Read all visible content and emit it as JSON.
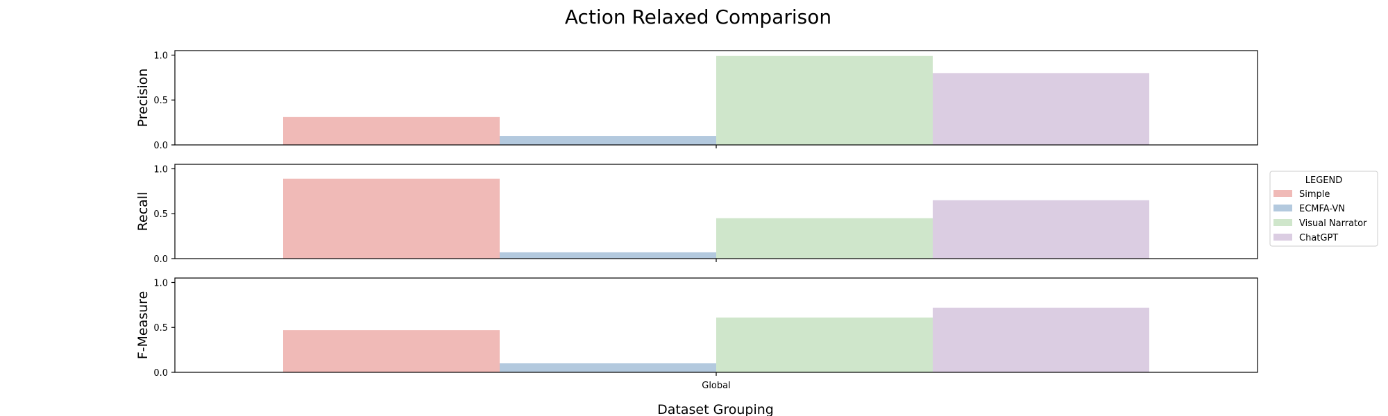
{
  "chart_data": {
    "type": "bar",
    "title": "Action Relaxed Comparison",
    "xlabel": "Dataset Grouping",
    "categories": [
      "Global"
    ],
    "legend": {
      "title": "LEGEND",
      "placement": "right-center",
      "entries": [
        "Simple",
        "ECMFA-VN",
        "Visual Narrator",
        "ChatGPT"
      ]
    },
    "colors": {
      "Simple": "#f0bab7",
      "ECMFA-VN": "#b3c9de",
      "Visual Narrator": "#cfe6cb",
      "ChatGPT": "#dbcde2"
    },
    "ylim": [
      0,
      1.05
    ],
    "yticks": [
      "0.0",
      "0.5",
      "1.0"
    ],
    "ytick_values": [
      0,
      0.5,
      1.0
    ],
    "grid": false,
    "panels": [
      {
        "ylabel": "Precision",
        "series": [
          {
            "name": "Simple",
            "values": [
              0.31
            ]
          },
          {
            "name": "ECMFA-VN",
            "values": [
              0.1
            ]
          },
          {
            "name": "Visual Narrator",
            "values": [
              0.99
            ]
          },
          {
            "name": "ChatGPT",
            "values": [
              0.8
            ]
          }
        ]
      },
      {
        "ylabel": "Recall",
        "series": [
          {
            "name": "Simple",
            "values": [
              0.89
            ]
          },
          {
            "name": "ECMFA-VN",
            "values": [
              0.07
            ]
          },
          {
            "name": "Visual Narrator",
            "values": [
              0.45
            ]
          },
          {
            "name": "ChatGPT",
            "values": [
              0.65
            ]
          }
        ]
      },
      {
        "ylabel": "F-Measure",
        "series": [
          {
            "name": "Simple",
            "values": [
              0.47
            ]
          },
          {
            "name": "ECMFA-VN",
            "values": [
              0.1
            ]
          },
          {
            "name": "Visual Narrator",
            "values": [
              0.61
            ]
          },
          {
            "name": "ChatGPT",
            "values": [
              0.72
            ]
          }
        ]
      }
    ]
  }
}
